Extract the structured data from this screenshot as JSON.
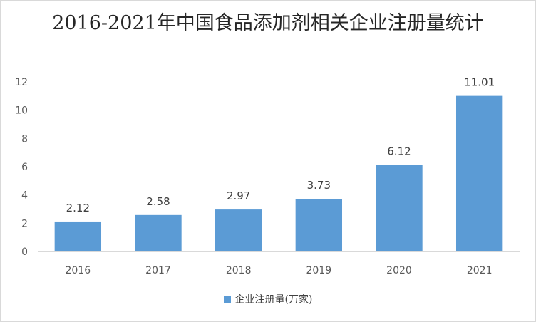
{
  "chart_data": {
    "type": "bar",
    "title": "2016-2021年中国食品添加剂相关企业注册量统计",
    "categories": [
      "2016",
      "2017",
      "2018",
      "2019",
      "2020",
      "2021"
    ],
    "series": [
      {
        "name": "企业注册量(万家)",
        "values": [
          2.12,
          2.58,
          2.97,
          3.73,
          6.12,
          11.01
        ]
      }
    ],
    "data_labels": [
      "2.12",
      "2.58",
      "2.97",
      "3.73",
      "6.12",
      "11.01"
    ],
    "y_ticks": [
      "0",
      "2",
      "4",
      "6",
      "8",
      "10",
      "12"
    ],
    "ylim": [
      0,
      12
    ],
    "grid": false,
    "legend_position": "bottom",
    "bar_color": "#5b9bd5"
  }
}
